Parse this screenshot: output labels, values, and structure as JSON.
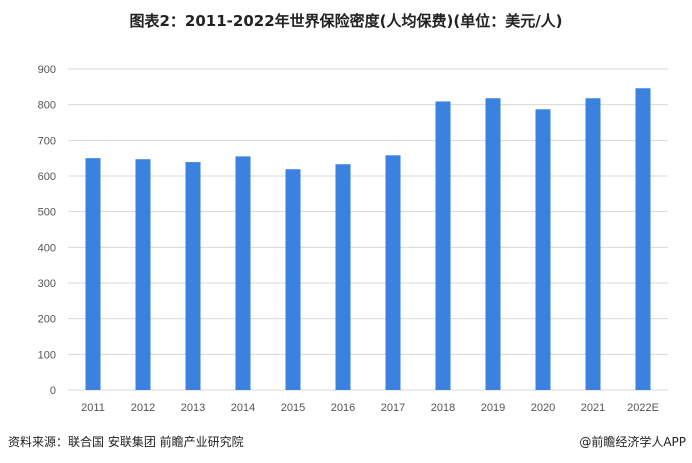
{
  "chart_data": {
    "type": "bar",
    "title": "图表2：2011-2022年世界保险密度(人均保费)(单位：美元/人)",
    "categories": [
      "2011",
      "2012",
      "2013",
      "2014",
      "2015",
      "2016",
      "2017",
      "2018",
      "2019",
      "2020",
      "2021",
      "2022E"
    ],
    "values": [
      650,
      647,
      639,
      655,
      619,
      633,
      658,
      809,
      818,
      787,
      818,
      846
    ],
    "ylim": [
      0,
      900
    ],
    "yticks": [
      0,
      100,
      200,
      300,
      400,
      500,
      600,
      700,
      800,
      900
    ],
    "xlabel": "",
    "ylabel": "",
    "grid": true,
    "bar_color": "#3a81e0"
  },
  "footer": {
    "source": "资料来源：联合国 安联集团 前瞻产业研究院",
    "credit": "@前瞻经济学人APP"
  }
}
